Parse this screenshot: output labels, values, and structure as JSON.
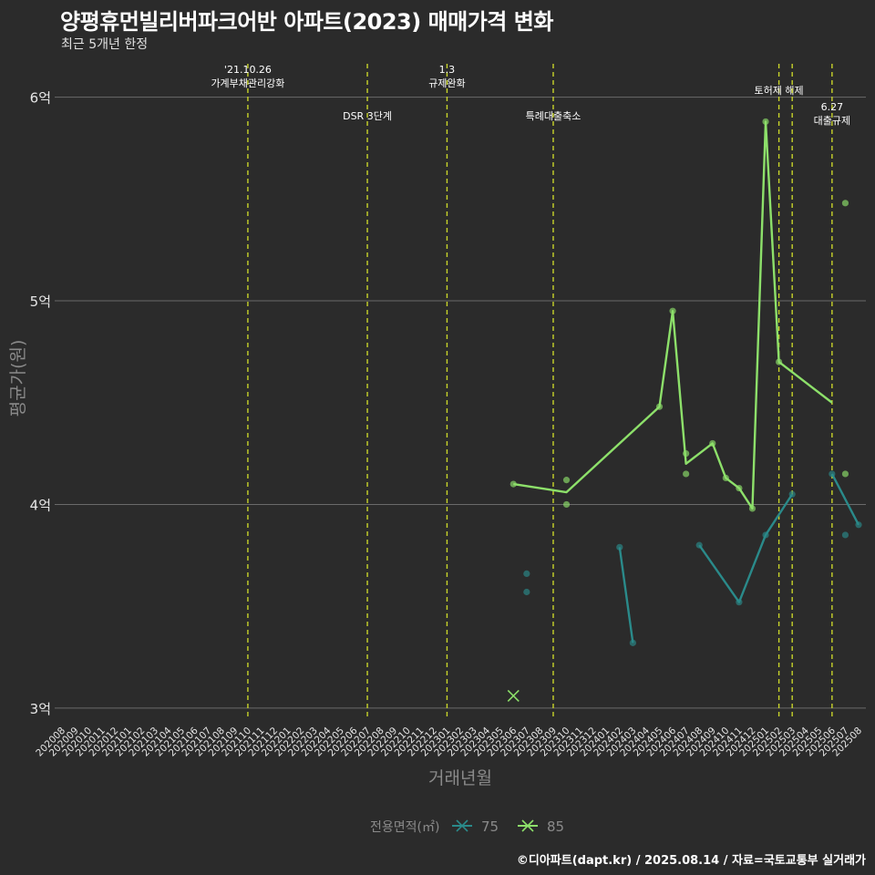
{
  "title": "양평휴먼빌리버파크어반 아파트(2023) 매매가격 변화",
  "subtitle": "최근 5개년 한정",
  "caption": "©디아파트(dapt.kr) / 2025.08.14 / 자료=국토교통부 실거래가",
  "colors": {
    "background": "#2b2b2b",
    "grid": "#6a6a6a",
    "series75": "#2a8a8a",
    "series85": "#8de06a",
    "event": "#c8d42a",
    "axisText": "#e6e6e6",
    "axisTitle": "#8a8a8a"
  },
  "chart_data": {
    "type": "line",
    "xlabel": "거래년월",
    "ylabel": "평균가(원)",
    "ylim": [
      2.95,
      6.2
    ],
    "yticks": [
      3,
      4,
      5,
      6
    ],
    "ytick_labels": [
      "3억",
      "4억",
      "5억",
      "6억"
    ],
    "categories": [
      "202008",
      "202009",
      "202010",
      "202011",
      "202012",
      "202101",
      "202102",
      "202103",
      "202104",
      "202105",
      "202106",
      "202107",
      "202108",
      "202109",
      "202110",
      "202111",
      "202112",
      "202201",
      "202202",
      "202203",
      "202204",
      "202205",
      "202206",
      "202207",
      "202208",
      "202209",
      "202210",
      "202211",
      "202212",
      "202301",
      "202302",
      "202303",
      "202304",
      "202305",
      "202306",
      "202307",
      "202308",
      "202309",
      "202310",
      "202311",
      "202312",
      "202401",
      "202402",
      "202403",
      "202404",
      "202405",
      "202406",
      "202407",
      "202408",
      "202409",
      "202410",
      "202411",
      "202412",
      "202501",
      "202502",
      "202503",
      "202504",
      "202505",
      "202506",
      "202507",
      "202508"
    ],
    "legend": {
      "title": "전용면적(㎡)",
      "position": "bottom",
      "items": [
        "75",
        "85"
      ]
    },
    "events": [
      {
        "x": 14.0,
        "label": "'21.10.26\n가계부채관리강화",
        "level": "top"
      },
      {
        "x": 23.0,
        "label": "DSR 3단계",
        "level": "low"
      },
      {
        "x": 29.0,
        "label": "1.3\n규제완화",
        "level": "top"
      },
      {
        "x": 37.0,
        "label": "특례대출축소",
        "level": "low"
      },
      {
        "x": 54.0,
        "label": "토허제 해제",
        "level": "mid"
      },
      {
        "x": 55.0,
        "label": "",
        "level": "none"
      },
      {
        "x": 58.0,
        "label": "6.27\n대출규제",
        "level": "low"
      }
    ],
    "series": [
      {
        "name": "75",
        "line": [
          [
            42,
            3.79
          ],
          [
            43,
            3.32
          ],
          null,
          [
            48,
            3.8
          ],
          [
            51,
            3.52
          ],
          [
            53,
            3.85
          ],
          [
            55,
            4.05
          ],
          null,
          [
            58,
            4.15
          ],
          [
            60,
            3.9
          ]
        ],
        "points": [
          [
            35,
            3.66
          ],
          [
            35,
            3.57
          ],
          [
            42,
            3.79
          ],
          [
            43,
            3.32
          ],
          [
            48,
            3.8
          ],
          [
            51,
            3.52
          ],
          [
            53,
            3.85
          ],
          [
            55,
            4.05
          ],
          [
            58,
            4.15
          ],
          [
            59,
            3.85
          ],
          [
            60,
            3.9
          ]
        ],
        "cross": [
          34,
          3.06
        ]
      },
      {
        "name": "85",
        "line": [
          [
            34,
            4.1
          ],
          [
            38,
            4.06
          ],
          [
            45,
            4.48
          ],
          [
            46,
            4.95
          ],
          [
            47,
            4.2
          ],
          [
            49,
            4.3
          ],
          [
            50,
            4.13
          ],
          [
            51,
            4.08
          ],
          [
            52,
            3.98
          ],
          [
            53,
            5.88
          ],
          [
            54,
            4.7
          ],
          [
            58,
            4.5
          ]
        ],
        "points": [
          [
            34,
            4.1
          ],
          [
            38,
            4.12
          ],
          [
            38,
            4.0
          ],
          [
            45,
            4.48
          ],
          [
            46,
            4.95
          ],
          [
            47,
            4.25
          ],
          [
            47,
            4.15
          ],
          [
            49,
            4.3
          ],
          [
            50,
            4.13
          ],
          [
            51,
            4.08
          ],
          [
            52,
            3.98
          ],
          [
            53,
            5.88
          ],
          [
            54,
            4.7
          ],
          [
            59,
            5.48
          ],
          [
            59,
            4.15
          ]
        ],
        "cross": [
          34,
          3.06
        ]
      }
    ]
  }
}
